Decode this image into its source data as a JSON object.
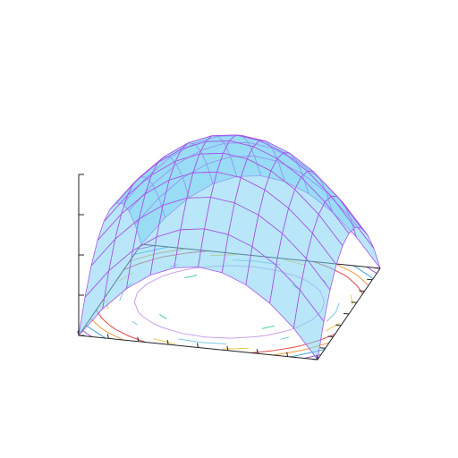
{
  "chart_data": {
    "type": "surface",
    "x": [
      -1,
      -0.8,
      -0.6,
      -0.4,
      -0.2,
      0,
      0.2,
      0.4,
      0.6,
      0.8,
      1
    ],
    "y": [
      -1,
      -0.8,
      -0.6,
      -0.4,
      -0.2,
      0,
      0.2,
      0.4,
      0.6,
      0.8,
      1
    ],
    "z": [
      [
        0,
        0.18,
        0.32,
        0.42,
        0.48,
        0.5,
        0.48,
        0.42,
        0.32,
        0.18,
        0
      ],
      [
        0.18,
        0.36,
        0.5,
        0.6,
        0.66,
        0.68,
        0.66,
        0.6,
        0.5,
        0.36,
        0.18
      ],
      [
        0.32,
        0.5,
        0.64,
        0.74,
        0.8,
        0.82,
        0.8,
        0.74,
        0.64,
        0.5,
        0.32
      ],
      [
        0.42,
        0.6,
        0.74,
        0.84,
        0.9,
        0.92,
        0.9,
        0.84,
        0.74,
        0.6,
        0.42
      ],
      [
        0.48,
        0.66,
        0.8,
        0.9,
        0.96,
        0.98,
        0.96,
        0.9,
        0.8,
        0.66,
        0.48
      ],
      [
        0.5,
        0.68,
        0.82,
        0.92,
        0.98,
        1,
        0.98,
        0.92,
        0.82,
        0.68,
        0.5
      ],
      [
        0.48,
        0.66,
        0.8,
        0.9,
        0.96,
        0.98,
        0.96,
        0.9,
        0.8,
        0.66,
        0.48
      ],
      [
        0.42,
        0.6,
        0.74,
        0.84,
        0.9,
        0.92,
        0.9,
        0.84,
        0.74,
        0.6,
        0.42
      ],
      [
        0.32,
        0.5,
        0.64,
        0.74,
        0.8,
        0.82,
        0.8,
        0.74,
        0.64,
        0.5,
        0.32
      ],
      [
        0.18,
        0.36,
        0.5,
        0.6,
        0.66,
        0.68,
        0.66,
        0.6,
        0.5,
        0.36,
        0.18
      ],
      [
        0,
        0.18,
        0.32,
        0.42,
        0.48,
        0.5,
        0.48,
        0.42,
        0.32,
        0.18,
        0
      ]
    ],
    "xlim": [
      -1,
      1
    ],
    "ylim": [
      -1,
      1
    ],
    "zlim": [
      0,
      1
    ],
    "xticks": [
      -1,
      -0.75,
      -0.5,
      -0.25,
      0,
      0.25,
      0.5,
      0.75,
      1
    ],
    "yticks": [
      -1,
      -0.75,
      -0.5,
      -0.25,
      0,
      0.25,
      0.5,
      0.75,
      1
    ],
    "zticks": [
      0,
      0.25,
      0.5,
      0.75,
      1
    ],
    "surface_color": "#7fd4f4",
    "mesh_color": "#a855e8",
    "contour_levels": [
      0.1,
      0.2,
      0.3,
      0.4,
      0.5,
      0.6,
      0.7,
      0.8,
      0.9
    ],
    "contour_colors": [
      "#9b59d0",
      "#3fa7d6",
      "#e89a3c",
      "#e04848",
      "#f2c94c",
      "#7ec8e3",
      "#c9a0e8",
      "#48c9b0",
      "#2ca58d"
    ]
  }
}
